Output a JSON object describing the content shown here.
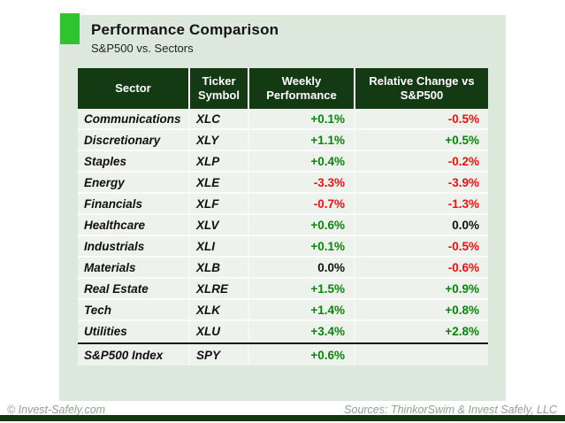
{
  "header": {
    "title": "Performance Comparison",
    "subtitle": "S&P500 vs. Sectors"
  },
  "chart_data": {
    "type": "table",
    "title": "Performance Comparison",
    "subtitle": "S&P500 vs. Sectors",
    "columns": [
      "Sector",
      "Ticker Symbol",
      "Weekly Performance",
      "Relative Change vs S&P500"
    ],
    "rows": [
      {
        "sector": "Communications",
        "ticker": "XLC",
        "weekly": "+0.1%",
        "relative": "-0.5%"
      },
      {
        "sector": "Discretionary",
        "ticker": "XLY",
        "weekly": "+1.1%",
        "relative": "+0.5%"
      },
      {
        "sector": "Staples",
        "ticker": "XLP",
        "weekly": "+0.4%",
        "relative": "-0.2%"
      },
      {
        "sector": "Energy",
        "ticker": "XLE",
        "weekly": "-3.3%",
        "relative": "-3.9%"
      },
      {
        "sector": "Financials",
        "ticker": "XLF",
        "weekly": "-0.7%",
        "relative": "-1.3%"
      },
      {
        "sector": "Healthcare",
        "ticker": "XLV",
        "weekly": "+0.6%",
        "relative": "0.0%"
      },
      {
        "sector": "Industrials",
        "ticker": "XLI",
        "weekly": "+0.1%",
        "relative": "-0.5%"
      },
      {
        "sector": "Materials",
        "ticker": "XLB",
        "weekly": "0.0%",
        "relative": "-0.6%"
      },
      {
        "sector": "Real Estate",
        "ticker": "XLRE",
        "weekly": "+1.5%",
        "relative": "+0.9%"
      },
      {
        "sector": "Tech",
        "ticker": "XLK",
        "weekly": "+1.4%",
        "relative": "+0.8%"
      },
      {
        "sector": "Utilities",
        "ticker": "XLU",
        "weekly": "+3.4%",
        "relative": "+2.8%"
      },
      {
        "sector": "S&P500 Index",
        "ticker": "SPY",
        "weekly": "+0.6%",
        "relative": ""
      }
    ]
  },
  "footer": {
    "left": "© Invest-Safely.com",
    "right": "Sources: ThinkorSwim & Invest Safely, LLC"
  },
  "colors": {
    "positive": "#0e820e",
    "negative": "#ee1111",
    "neutral": "#111111",
    "header_bg": "#143a14",
    "accent_square": "#2fc42f",
    "panel_bg": "#dce8dc",
    "row_bg": "#edf2ed",
    "bottom_bar": "#123812"
  }
}
